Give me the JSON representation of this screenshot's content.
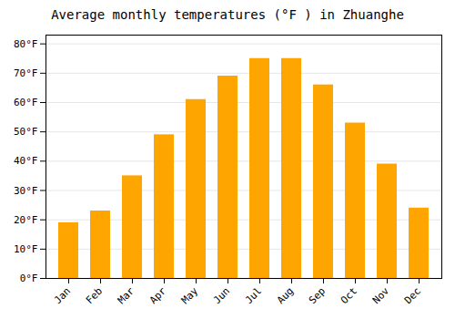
{
  "chart_data": {
    "type": "bar",
    "title": "Average monthly temperatures (°F ) in Zhuanghe",
    "categories": [
      "Jan",
      "Feb",
      "Mar",
      "Apr",
      "May",
      "Jun",
      "Jul",
      "Aug",
      "Sep",
      "Oct",
      "Nov",
      "Dec"
    ],
    "values": [
      19,
      23,
      35,
      49,
      61,
      69,
      75,
      75,
      66,
      53,
      39,
      24
    ],
    "color": "#FFA500",
    "ylim": [
      0,
      83
    ],
    "yticks": [
      {
        "value": 0,
        "label": "0°F"
      },
      {
        "value": 10,
        "label": "10°F"
      },
      {
        "value": 20,
        "label": "20°F"
      },
      {
        "value": 30,
        "label": "30°F"
      },
      {
        "value": 40,
        "label": "40°F"
      },
      {
        "value": 50,
        "label": "50°F"
      },
      {
        "value": 60,
        "label": "60°F"
      },
      {
        "value": 70,
        "label": "70°F"
      },
      {
        "value": 80,
        "label": "80°F"
      }
    ],
    "grid": true
  }
}
